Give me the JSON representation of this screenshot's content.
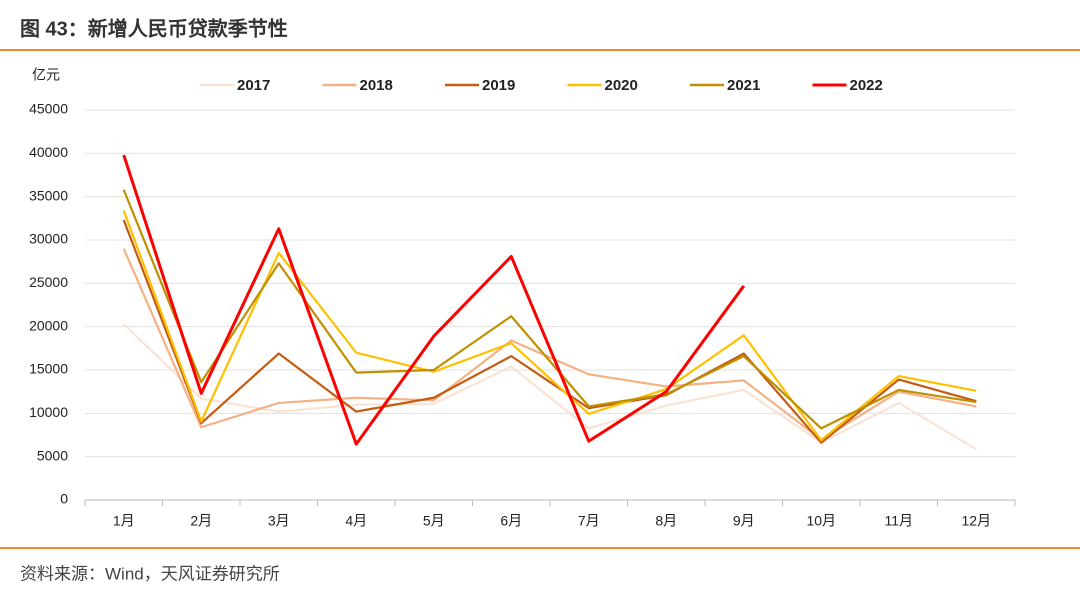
{
  "chart_data": {
    "type": "line",
    "title": "图 43：新增人民币贷款季节性",
    "y_label": "亿元",
    "source": "资料来源：Wind，天风证券研究所",
    "categories": [
      "1月",
      "2月",
      "3月",
      "4月",
      "5月",
      "6月",
      "7月",
      "8月",
      "9月",
      "10月",
      "11月",
      "12月"
    ],
    "series": [
      {
        "name": "2017",
        "color": "#fbe3d4",
        "values": [
          20300,
          11700,
          10200,
          11000,
          11100,
          15400,
          8255,
          10900,
          12700,
          6632,
          11200,
          5844
        ]
      },
      {
        "name": "2018",
        "color": "#f4b183",
        "values": [
          29000,
          8393,
          11200,
          11800,
          11500,
          18400,
          14500,
          13100,
          13800,
          6970,
          12500,
          10800
        ]
      },
      {
        "name": "2019",
        "color": "#c55a11",
        "values": [
          32300,
          8858,
          16900,
          10200,
          11800,
          16600,
          10600,
          12100,
          16900,
          6613,
          13900,
          11400
        ]
      },
      {
        "name": "2020",
        "color": "#ffc000",
        "values": [
          33400,
          9057,
          28500,
          17000,
          14800,
          18100,
          9927,
          12800,
          19000,
          6898,
          14300,
          12600
        ]
      },
      {
        "name": "2021",
        "color": "#bf9000",
        "values": [
          35800,
          13600,
          27300,
          14700,
          15000,
          21200,
          10800,
          12200,
          16600,
          8262,
          12700,
          11300
        ]
      },
      {
        "name": "2022",
        "color": "#ff0000",
        "values": [
          39800,
          12300,
          31300,
          6454,
          18900,
          28100,
          6790,
          12500,
          24700,
          null,
          null,
          null
        ]
      }
    ],
    "ylim": [
      0,
      45000
    ],
    "yticks": [
      0,
      5000,
      10000,
      15000,
      20000,
      25000,
      30000,
      35000,
      40000,
      45000
    ],
    "grid": true,
    "legend": "top"
  }
}
